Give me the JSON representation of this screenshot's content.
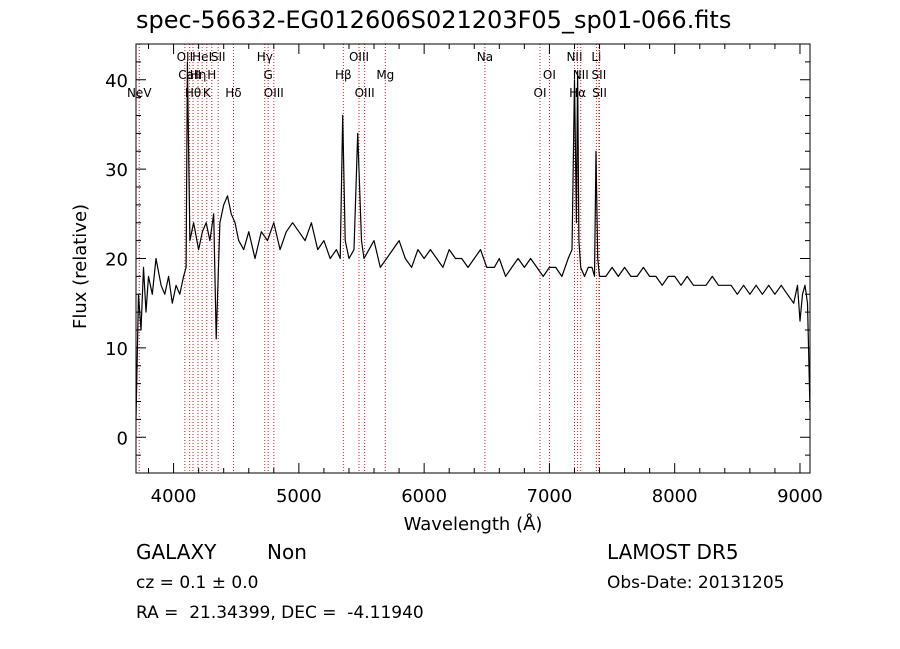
{
  "chart_data": {
    "type": "line",
    "title": "spec-56632-EG012606S021203F05_sp01-066.fits",
    "xlabel": "Wavelength (Å)",
    "ylabel": "Flux (relative)",
    "xlim": [
      3700,
      9080
    ],
    "ylim": [
      -4,
      44
    ],
    "x_ticks": [
      4000,
      5000,
      6000,
      7000,
      8000,
      9000
    ],
    "y_ticks": [
      0,
      10,
      20,
      30,
      40
    ],
    "grid": false,
    "series": [
      {
        "x": [
          3700,
          3720,
          3740,
          3760,
          3780,
          3800,
          3830,
          3860,
          3900,
          3930,
          3960,
          3990,
          4020,
          4050,
          4080,
          4100,
          4110,
          4130,
          4160,
          4200,
          4230,
          4260,
          4290,
          4320,
          4340,
          4370,
          4400,
          4430,
          4460,
          4490,
          4520,
          4560,
          4600,
          4650,
          4700,
          4750,
          4800,
          4850,
          4900,
          4950,
          5000,
          5050,
          5100,
          5150,
          5200,
          5250,
          5300,
          5330,
          5350,
          5370,
          5400,
          5440,
          5470,
          5500,
          5520,
          5560,
          5600,
          5650,
          5700,
          5750,
          5800,
          5850,
          5900,
          5950,
          6000,
          6050,
          6100,
          6150,
          6200,
          6250,
          6300,
          6350,
          6400,
          6450,
          6500,
          6560,
          6600,
          6650,
          6700,
          6750,
          6800,
          6850,
          6900,
          6950,
          7000,
          7050,
          7100,
          7150,
          7180,
          7200,
          7215,
          7225,
          7235,
          7250,
          7280,
          7310,
          7340,
          7360,
          7372,
          7385,
          7400,
          7450,
          7500,
          7550,
          7600,
          7650,
          7700,
          7750,
          7800,
          7850,
          7900,
          7950,
          8000,
          8050,
          8100,
          8150,
          8200,
          8250,
          8300,
          8350,
          8400,
          8450,
          8500,
          8550,
          8600,
          8650,
          8700,
          8750,
          8800,
          8850,
          8900,
          8950,
          8980,
          9000,
          9020,
          9040,
          9060,
          9080
        ],
        "y": [
          2,
          16,
          12,
          19,
          14,
          18,
          16,
          20,
          17,
          16,
          18,
          15,
          17,
          16,
          18,
          19,
          42,
          22,
          24,
          21,
          23,
          24,
          22,
          25,
          11,
          24,
          26,
          27,
          25,
          24,
          22,
          21,
          23,
          20,
          23,
          22,
          24,
          21,
          23,
          24,
          23,
          22,
          24,
          21,
          22,
          20,
          21,
          20,
          36,
          22,
          20,
          21,
          34,
          22,
          20,
          21,
          22,
          19,
          20,
          21,
          22,
          20,
          19,
          21,
          20,
          21,
          20,
          19,
          21,
          20,
          20,
          19,
          20,
          21,
          19,
          19,
          20,
          18,
          19,
          20,
          19,
          20,
          19,
          18,
          19,
          19,
          18,
          20,
          21,
          40,
          24,
          41,
          22,
          19,
          18,
          19,
          19,
          18,
          32,
          20,
          18,
          18,
          19,
          18,
          19,
          18,
          18,
          19,
          18,
          18,
          17,
          18,
          18,
          17,
          18,
          17,
          17,
          17,
          18,
          17,
          17,
          17,
          16,
          17,
          16,
          17,
          16,
          17,
          16,
          17,
          16,
          15,
          17,
          13,
          16,
          17,
          15,
          3
        ]
      }
    ],
    "lines": [
      {
        "name": "NeV",
        "x": 3726,
        "row": 3
      },
      {
        "name": "OII",
        "x": 4090,
        "row": 1
      },
      {
        "name": "CaII",
        "x": 4128,
        "row": 2
      },
      {
        "name": "Hθ",
        "x": 4155,
        "row": 3
      },
      {
        "name": "Hη",
        "x": 4195,
        "row": 2
      },
      {
        "name": "HeI",
        "x": 4228,
        "row": 1
      },
      {
        "name": "K",
        "x": 4265,
        "row": 3
      },
      {
        "name": "H",
        "x": 4305,
        "row": 2
      },
      {
        "name": "SII",
        "x": 4356,
        "row": 1
      },
      {
        "name": "Hδ",
        "x": 4478,
        "row": 3
      },
      {
        "name": "Hγ",
        "x": 4728,
        "row": 1
      },
      {
        "name": "G",
        "x": 4755,
        "row": 2
      },
      {
        "name": "OIII",
        "x": 4800,
        "row": 3
      },
      {
        "name": "Hβ",
        "x": 5355,
        "row": 2
      },
      {
        "name": "OIII",
        "x": 5480,
        "row": 1
      },
      {
        "name": "OIII",
        "x": 5525,
        "row": 3
      },
      {
        "name": "Mg",
        "x": 5690,
        "row": 2
      },
      {
        "name": "Na",
        "x": 6485,
        "row": 1
      },
      {
        "name": "OI",
        "x": 6925,
        "row": 3
      },
      {
        "name": "OI",
        "x": 7000,
        "row": 2
      },
      {
        "name": "NII",
        "x": 7200,
        "row": 1
      },
      {
        "name": "Hα",
        "x": 7225,
        "row": 3
      },
      {
        "name": "NII",
        "x": 7250,
        "row": 2
      },
      {
        "name": "Li",
        "x": 7375,
        "row": 1
      },
      {
        "name": "SII",
        "x": 7395,
        "row": 2
      },
      {
        "name": "SII",
        "x": 7400,
        "row": 3
      }
    ]
  },
  "info": {
    "class": "GALAXY",
    "subclass": "Non",
    "cz": "cz = 0.1 ± 0.0",
    "coords": "RA =  21.34399, DEC =  -4.11940",
    "survey": "LAMOST DR5",
    "obs_date": "Obs-Date: 20131205"
  }
}
